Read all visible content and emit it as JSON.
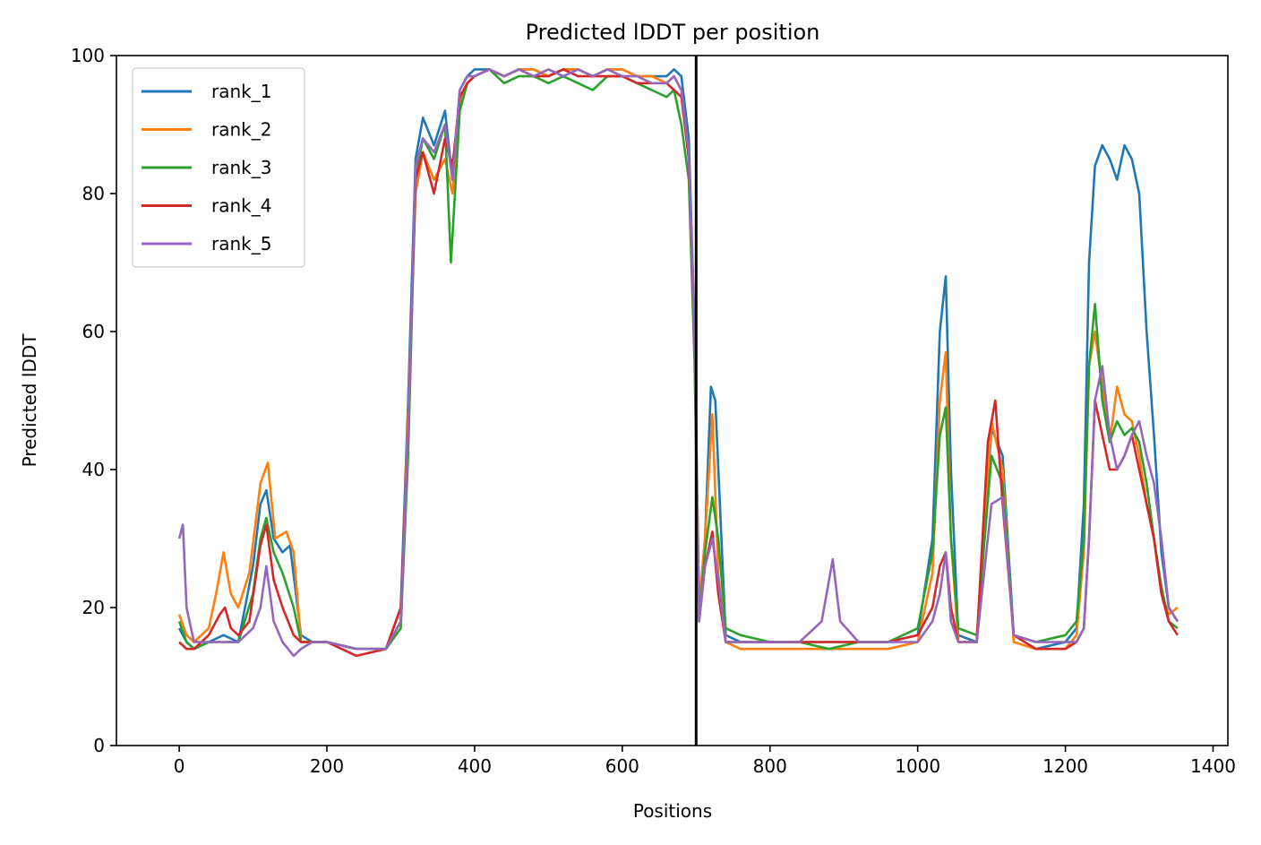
{
  "chart_data": {
    "type": "line",
    "title": "Predicted lDDT per position",
    "xlabel": "Positions",
    "ylabel": "Predicted lDDT",
    "xlim": [
      -85,
      1420
    ],
    "ylim": [
      0,
      100
    ],
    "x_ticks": [
      0,
      200,
      400,
      600,
      800,
      1000,
      1200,
      1400
    ],
    "y_ticks": [
      0,
      20,
      40,
      60,
      80,
      100
    ],
    "grid": false,
    "legend_position": "top-left",
    "separator_x": 700,
    "series": [
      {
        "name": "rank_1",
        "color": "#1f77b4",
        "x": [
          0,
          10,
          20,
          40,
          60,
          80,
          100,
          110,
          118,
          128,
          140,
          150,
          165,
          180,
          200,
          240,
          280,
          300,
          310,
          320,
          330,
          345,
          360,
          370,
          380,
          390,
          400,
          420,
          440,
          460,
          480,
          500,
          520,
          540,
          560,
          580,
          600,
          620,
          640,
          660,
          670,
          680,
          690,
          698,
          704,
          712,
          720,
          726,
          740,
          760,
          800,
          840,
          880,
          920,
          960,
          1000,
          1020,
          1030,
          1038,
          1045,
          1055,
          1080,
          1100,
          1115,
          1130,
          1160,
          1200,
          1215,
          1225,
          1232,
          1240,
          1250,
          1260,
          1270,
          1280,
          1290,
          1300,
          1310,
          1320,
          1330,
          1340,
          1352
        ],
        "y": [
          17,
          15,
          14,
          15,
          16,
          15,
          26,
          35,
          37,
          30,
          28,
          29,
          16,
          15,
          15,
          14,
          14,
          20,
          50,
          85,
          91,
          87,
          92,
          82,
          95,
          97,
          98,
          98,
          97,
          98,
          98,
          97,
          98,
          98,
          97,
          98,
          98,
          97,
          97,
          97,
          98,
          97,
          88,
          60,
          20,
          30,
          52,
          50,
          16,
          15,
          15,
          15,
          15,
          15,
          15,
          16,
          30,
          60,
          68,
          40,
          16,
          15,
          46,
          42,
          16,
          14,
          15,
          17,
          35,
          70,
          84,
          87,
          85,
          82,
          87,
          85,
          80,
          60,
          45,
          28,
          20,
          18
        ]
      },
      {
        "name": "rank_2",
        "color": "#ff7f0e",
        "x": [
          0,
          10,
          20,
          40,
          50,
          60,
          70,
          80,
          95,
          110,
          120,
          130,
          145,
          155,
          165,
          180,
          200,
          240,
          280,
          300,
          310,
          320,
          330,
          345,
          360,
          370,
          380,
          390,
          400,
          420,
          440,
          460,
          480,
          500,
          520,
          540,
          560,
          580,
          600,
          620,
          640,
          660,
          670,
          680,
          690,
          698,
          704,
          712,
          722,
          730,
          740,
          760,
          800,
          840,
          880,
          920,
          960,
          1000,
          1020,
          1030,
          1038,
          1045,
          1055,
          1080,
          1100,
          1115,
          1130,
          1160,
          1200,
          1215,
          1225,
          1232,
          1240,
          1250,
          1260,
          1270,
          1280,
          1290,
          1300,
          1310,
          1320,
          1330,
          1340,
          1352
        ],
        "y": [
          19,
          16,
          15,
          17,
          22,
          28,
          22,
          20,
          25,
          38,
          41,
          30,
          31,
          28,
          15,
          15,
          15,
          14,
          14,
          18,
          48,
          80,
          86,
          82,
          85,
          80,
          93,
          96,
          97,
          98,
          97,
          98,
          98,
          97,
          98,
          98,
          97,
          98,
          98,
          97,
          97,
          96,
          97,
          95,
          85,
          60,
          20,
          30,
          48,
          25,
          15,
          14,
          14,
          14,
          14,
          14,
          14,
          15,
          25,
          50,
          57,
          30,
          15,
          15,
          47,
          40,
          15,
          14,
          14,
          16,
          28,
          55,
          60,
          52,
          44,
          52,
          48,
          47,
          42,
          35,
          30,
          22,
          19,
          20
        ]
      },
      {
        "name": "rank_3",
        "color": "#2ca02c",
        "x": [
          0,
          10,
          20,
          40,
          60,
          80,
          100,
          110,
          118,
          128,
          140,
          155,
          165,
          180,
          200,
          240,
          280,
          300,
          310,
          320,
          330,
          345,
          360,
          368,
          380,
          390,
          400,
          420,
          440,
          460,
          480,
          500,
          520,
          540,
          560,
          580,
          600,
          620,
          640,
          660,
          670,
          680,
          690,
          698,
          704,
          712,
          722,
          730,
          740,
          760,
          800,
          840,
          880,
          920,
          960,
          1000,
          1020,
          1030,
          1038,
          1045,
          1055,
          1080,
          1100,
          1115,
          1130,
          1160,
          1200,
          1215,
          1225,
          1232,
          1240,
          1250,
          1260,
          1270,
          1280,
          1290,
          1300,
          1310,
          1320,
          1330,
          1340,
          1352
        ],
        "y": [
          18,
          15,
          14,
          15,
          15,
          15,
          22,
          30,
          33,
          28,
          25,
          20,
          15,
          15,
          15,
          14,
          14,
          17,
          42,
          82,
          88,
          85,
          90,
          70,
          92,
          96,
          97,
          98,
          96,
          97,
          97,
          96,
          97,
          96,
          95,
          97,
          97,
          96,
          95,
          94,
          95,
          90,
          82,
          55,
          18,
          28,
          36,
          30,
          17,
          16,
          15,
          15,
          14,
          15,
          15,
          17,
          28,
          45,
          49,
          30,
          17,
          16,
          42,
          38,
          16,
          15,
          16,
          18,
          30,
          55,
          64,
          50,
          44,
          47,
          45,
          46,
          44,
          38,
          30,
          23,
          18,
          17
        ]
      },
      {
        "name": "rank_4",
        "color": "#d62728",
        "x": [
          0,
          10,
          20,
          40,
          55,
          62,
          70,
          80,
          95,
          110,
          118,
          128,
          140,
          155,
          165,
          180,
          200,
          240,
          280,
          300,
          310,
          320,
          330,
          345,
          360,
          370,
          380,
          390,
          400,
          420,
          440,
          460,
          480,
          500,
          520,
          540,
          560,
          580,
          600,
          620,
          640,
          660,
          670,
          680,
          690,
          698,
          704,
          712,
          722,
          730,
          740,
          760,
          800,
          840,
          880,
          920,
          960,
          1000,
          1020,
          1030,
          1038,
          1045,
          1055,
          1080,
          1095,
          1105,
          1115,
          1130,
          1160,
          1200,
          1215,
          1225,
          1232,
          1240,
          1250,
          1260,
          1270,
          1280,
          1290,
          1300,
          1310,
          1320,
          1330,
          1340,
          1352
        ],
        "y": [
          15,
          14,
          14,
          16,
          19,
          20,
          17,
          16,
          18,
          29,
          32,
          24,
          20,
          16,
          15,
          15,
          15,
          13,
          14,
          20,
          45,
          82,
          86,
          80,
          88,
          84,
          94,
          96,
          97,
          98,
          97,
          98,
          97,
          97,
          98,
          97,
          97,
          97,
          97,
          96,
          96,
          96,
          95,
          94,
          85,
          58,
          18,
          26,
          31,
          22,
          15,
          15,
          15,
          15,
          15,
          15,
          15,
          16,
          20,
          26,
          28,
          20,
          15,
          15,
          44,
          50,
          35,
          16,
          14,
          14,
          15,
          17,
          30,
          50,
          45,
          40,
          40,
          42,
          45,
          40,
          35,
          30,
          22,
          18,
          16
        ]
      },
      {
        "name": "rank_5",
        "color": "#9467bd",
        "x": [
          0,
          5,
          10,
          20,
          40,
          60,
          80,
          100,
          110,
          118,
          128,
          140,
          155,
          165,
          180,
          200,
          240,
          280,
          300,
          310,
          320,
          330,
          345,
          360,
          370,
          380,
          390,
          400,
          420,
          440,
          460,
          480,
          500,
          520,
          540,
          560,
          580,
          600,
          620,
          640,
          660,
          670,
          680,
          690,
          698,
          704,
          712,
          722,
          730,
          740,
          760,
          800,
          840,
          870,
          885,
          895,
          920,
          960,
          1000,
          1020,
          1030,
          1038,
          1045,
          1055,
          1080,
          1100,
          1115,
          1130,
          1160,
          1200,
          1215,
          1225,
          1232,
          1240,
          1250,
          1260,
          1270,
          1280,
          1290,
          1300,
          1310,
          1320,
          1330,
          1340,
          1352
        ],
        "y": [
          30,
          32,
          20,
          15,
          15,
          15,
          15,
          17,
          20,
          26,
          18,
          15,
          13,
          14,
          15,
          15,
          14,
          14,
          18,
          45,
          84,
          88,
          86,
          90,
          82,
          95,
          97,
          97,
          98,
          97,
          98,
          97,
          98,
          97,
          98,
          97,
          98,
          97,
          97,
          96,
          96,
          97,
          95,
          86,
          58,
          18,
          26,
          30,
          24,
          15,
          15,
          15,
          15,
          18,
          27,
          18,
          15,
          15,
          15,
          18,
          22,
          28,
          18,
          15,
          15,
          35,
          36,
          16,
          15,
          15,
          15,
          17,
          30,
          50,
          55,
          45,
          40,
          42,
          45,
          47,
          42,
          38,
          30,
          20,
          18
        ]
      }
    ]
  }
}
